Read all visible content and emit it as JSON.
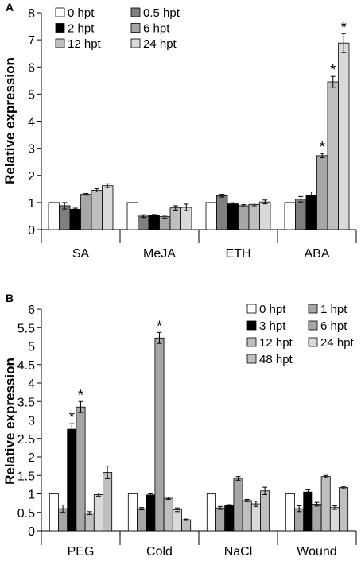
{
  "chart_data": [
    {
      "type": "bar",
      "panel_label": "A",
      "ylabel": "Relative expression",
      "ylim": [
        0,
        8
      ],
      "yticks": [
        "0",
        "1",
        "2",
        "3",
        "4",
        "5",
        "6",
        "7",
        "8"
      ],
      "categories": [
        "SA",
        "MeJA",
        "ETH",
        "ABA"
      ],
      "series": [
        {
          "name": "0 hpt",
          "values": [
            1.0,
            1.0,
            1.0,
            1.0
          ],
          "errors": [
            0,
            0,
            0,
            0
          ],
          "sig": [
            false,
            false,
            false,
            false
          ],
          "color": "#ffffff"
        },
        {
          "name": "0.5 hpt",
          "values": [
            0.88,
            0.5,
            1.25,
            1.12
          ],
          "errors": [
            0.12,
            0.05,
            0.05,
            0.1
          ],
          "sig": [
            false,
            false,
            false,
            false
          ],
          "color": "#7f7f7f"
        },
        {
          "name": "2 hpt",
          "values": [
            0.75,
            0.52,
            0.95,
            1.27
          ],
          "errors": [
            0.04,
            0.04,
            0.04,
            0.12
          ],
          "sig": [
            false,
            false,
            false,
            false
          ],
          "color": "#000000"
        },
        {
          "name": "6 hpt",
          "values": [
            1.3,
            0.48,
            0.88,
            2.73
          ],
          "errors": [
            0.03,
            0.05,
            0.04,
            0.08
          ],
          "sig": [
            false,
            false,
            false,
            true
          ],
          "color": "#a6a6a6"
        },
        {
          "name": "12 hpt",
          "values": [
            1.45,
            0.8,
            0.93,
            5.45
          ],
          "errors": [
            0.06,
            0.08,
            0.05,
            0.2
          ],
          "sig": [
            false,
            false,
            false,
            true
          ],
          "color": "#bfbfbf"
        },
        {
          "name": "24 hpt",
          "values": [
            1.62,
            0.82,
            1.02,
            6.88
          ],
          "errors": [
            0.07,
            0.12,
            0.07,
            0.35
          ],
          "sig": [
            false,
            false,
            false,
            true
          ],
          "color": "#d9d9d9"
        }
      ],
      "significance_marker": "*"
    },
    {
      "type": "bar",
      "panel_label": "B",
      "ylabel": "Relative expression",
      "ylim": [
        0,
        6
      ],
      "yticks": [
        "0",
        "0.5",
        "1",
        "1.5",
        "2",
        "2.5",
        "3",
        "3.5",
        "4",
        "4.5",
        "5",
        "5.5",
        "6"
      ],
      "categories": [
        "PEG",
        "Cold",
        "NaCl",
        "Wound"
      ],
      "series": [
        {
          "name": "0 hpt",
          "values": [
            1.0,
            1.0,
            1.0,
            1.0
          ],
          "errors": [
            0,
            0,
            0,
            0
          ],
          "sig": [
            false,
            false,
            false,
            false
          ],
          "color": "#ffffff"
        },
        {
          "name": "1 hpt",
          "values": [
            0.6,
            0.6,
            0.62,
            0.6
          ],
          "errors": [
            0.1,
            0.03,
            0.04,
            0.08
          ],
          "sig": [
            false,
            false,
            false,
            false
          ],
          "color": "#a6a6a6"
        },
        {
          "name": "3 hpt",
          "values": [
            2.75,
            0.97,
            0.68,
            1.05
          ],
          "errors": [
            0.15,
            0.03,
            0.03,
            0.06
          ],
          "sig": [
            true,
            false,
            false,
            false
          ],
          "color": "#000000"
        },
        {
          "name": "6 hpt",
          "values": [
            3.35,
            5.22,
            1.42,
            0.72
          ],
          "errors": [
            0.15,
            0.15,
            0.05,
            0.05
          ],
          "sig": [
            true,
            true,
            false,
            false
          ],
          "color": "#a6a6a6"
        },
        {
          "name": "12 hpt",
          "values": [
            0.48,
            0.88,
            0.82,
            1.47
          ],
          "errors": [
            0.04,
            0.03,
            0.03,
            0.03
          ],
          "sig": [
            false,
            false,
            false,
            false
          ],
          "color": "#bfbfbf"
        },
        {
          "name": "24 hpt",
          "values": [
            0.98,
            0.57,
            0.73,
            0.63
          ],
          "errors": [
            0.04,
            0.05,
            0.07,
            0.05
          ],
          "sig": [
            false,
            false,
            false,
            false
          ],
          "color": "#d9d9d9"
        },
        {
          "name": "48 hpt",
          "values": [
            1.58,
            0.3,
            1.08,
            1.17
          ],
          "errors": [
            0.17,
            0.02,
            0.1,
            0.03
          ],
          "sig": [
            false,
            false,
            false,
            false
          ],
          "color": "#bfbfbf"
        }
      ],
      "significance_marker": "*"
    }
  ]
}
